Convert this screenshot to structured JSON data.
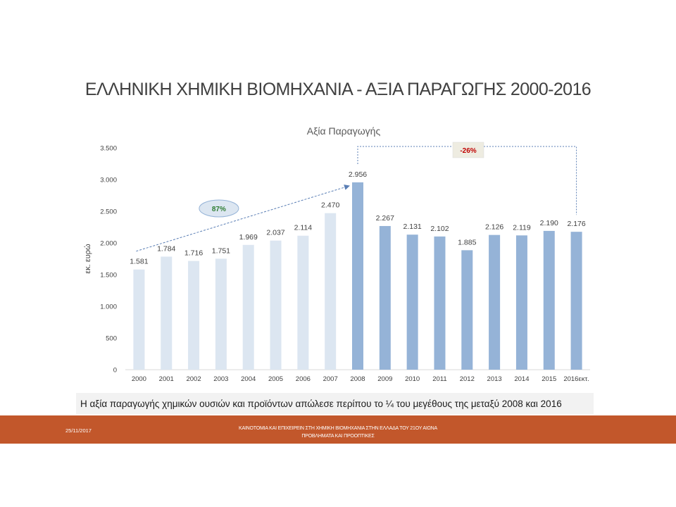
{
  "slide": {
    "title": "ΕΛΛΗΝΙΚΗ ΧΗΜΙΚΗ ΒΙΟΜΗΧΑΝΙΑ - ΑΞΙΑ ΠΑΡΑΓΩΓΗΣ 2000-2016",
    "caption": "Η αξία παραγωγής χημικών ουσιών και προϊόντων απώλεσε περίπου το ¼ του μεγέθους της μεταξύ 2008 και 2016",
    "footer_date": "25/11/2017",
    "footer_line1": "ΚΑΙΝΟΤΟΜΙΑ ΚΑΙ ΕΠΙΧΕΙΡΕΙΝ ΣΤΗ ΧΗΜΙΚΗ ΒΙΟΜΗΧΑΝΙΑ ΣΤΗΝ ΕΛΛΑΔΑ ΤΟΥ 21ΟΥ ΑΙΩΝΑ",
    "footer_line2": "ΠΡΟΒΛΗΜΑΤΑ ΚΑΙ ΠΡΟΟΠΤΙΚΕΣ",
    "colors": {
      "footer_band": "#c2572b",
      "bar_light": "#dce6f1",
      "bar_dark": "#95b3d7",
      "annotation_up": "#2e7d32",
      "annotation_down": "#c00000"
    }
  },
  "chart_data": {
    "type": "bar",
    "title": "Αξία Παραγωγής",
    "ylabel": "εκ. ευρώ",
    "xlabel": "",
    "ylim": [
      0,
      3500
    ],
    "yticks": [
      0,
      500,
      1000,
      1500,
      2000,
      2500,
      3000,
      3500
    ],
    "ytick_labels": [
      "0",
      "500",
      "1.000",
      "1.500",
      "2.000",
      "2.500",
      "3.000",
      "3.500"
    ],
    "categories": [
      "2000",
      "2001",
      "2002",
      "2003",
      "2004",
      "2005",
      "2006",
      "2007",
      "2008",
      "2009",
      "2010",
      "2011",
      "2012",
      "2013",
      "2014",
      "2015",
      "2016εκτ."
    ],
    "values": [
      1581,
      1784,
      1716,
      1751,
      1969,
      2037,
      2114,
      2470,
      2956,
      2267,
      2131,
      2102,
      1885,
      2126,
      2119,
      2190,
      2176
    ],
    "value_labels": [
      "1.581",
      "1.784",
      "1.716",
      "1.751",
      "1.969",
      "2.037",
      "2.114",
      "2.470",
      "2.956",
      "2.267",
      "2.131",
      "2.102",
      "1.885",
      "2.126",
      "2.119",
      "2.190",
      "2.176"
    ],
    "grid": false,
    "annotations": [
      {
        "text": "87%",
        "from": "2000",
        "to": "2008",
        "style": "ellipse"
      },
      {
        "text": "-26%",
        "from": "2008",
        "to": "2016εκτ.",
        "style": "box"
      }
    ]
  }
}
